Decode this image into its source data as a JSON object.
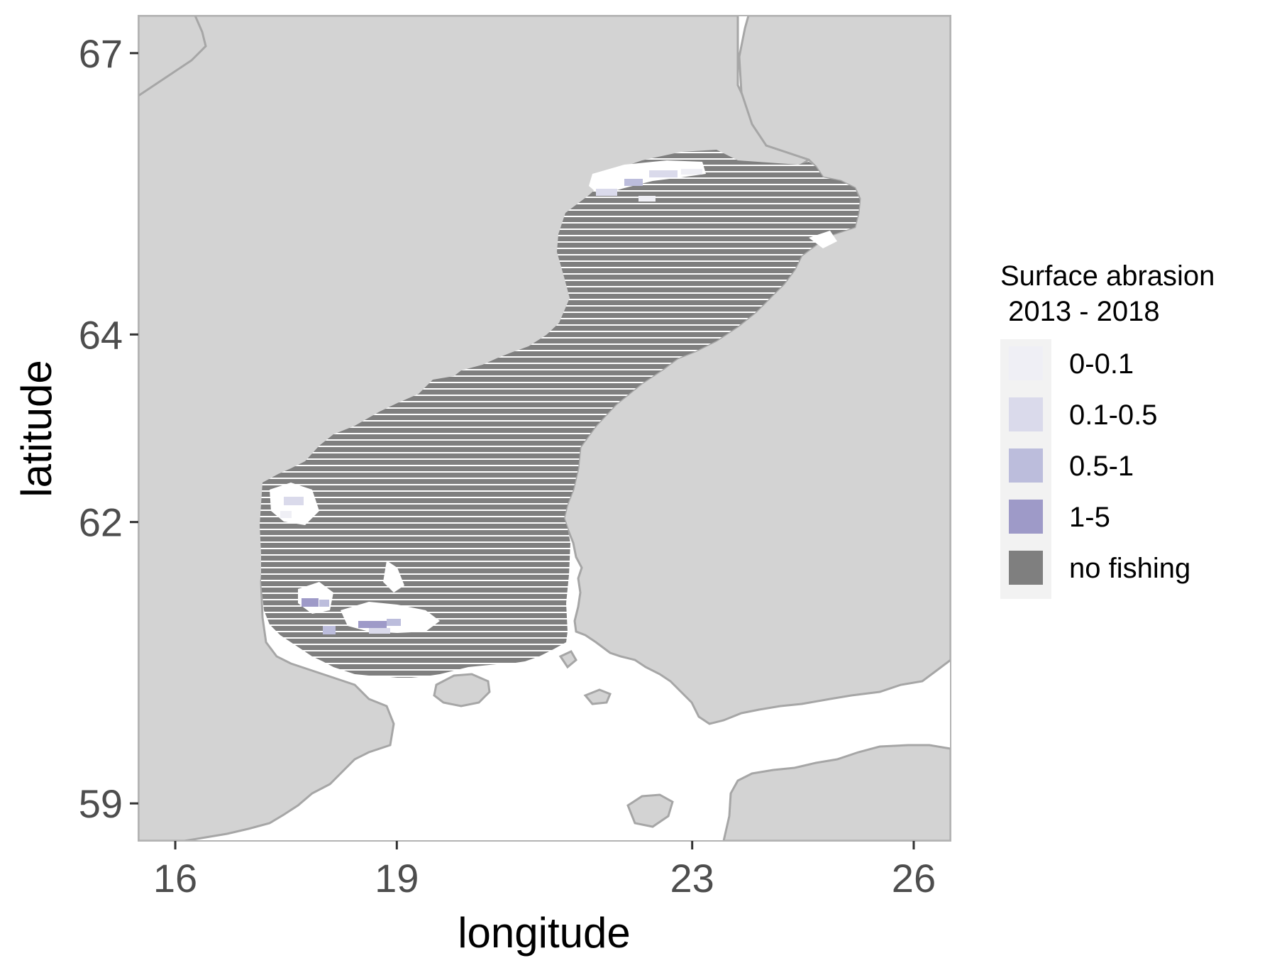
{
  "chart_data": {
    "type": "map",
    "xlabel": "longitude",
    "ylabel": "latitude",
    "xlim": [
      15.5,
      26.5
    ],
    "ylim": [
      58.6,
      67.4
    ],
    "x_ticks": [
      {
        "value": 16,
        "label": "16"
      },
      {
        "value": 19,
        "label": "19"
      },
      {
        "value": 23,
        "label": "23"
      },
      {
        "value": 26,
        "label": "26"
      }
    ],
    "y_ticks": [
      {
        "value": 59,
        "label": "59"
      },
      {
        "value": 62,
        "label": "62"
      },
      {
        "value": 64,
        "label": "64"
      },
      {
        "value": 67,
        "label": "67"
      }
    ],
    "legend": {
      "title_line1": "Surface abrasion",
      "title_line2": " 2013 - 2018",
      "placement": "right",
      "entries": [
        {
          "label": "0-0.1",
          "color": "#efeff5"
        },
        {
          "label": "0.1-0.5",
          "color": "#dadaeb"
        },
        {
          "label": "0.5-1",
          "color": "#bcbddc"
        },
        {
          "label": "1-5",
          "color": "#9e9ac8"
        },
        {
          "label": "no fishing",
          "color": "#7f7f7f"
        }
      ]
    },
    "grid": false,
    "colors": {
      "land": "#d3d3d3",
      "coastline": "#a6a6a6",
      "sea": "#ffffff",
      "no_fishing": "#7f7f7f",
      "panel_border": "#b3b3b3"
    }
  }
}
